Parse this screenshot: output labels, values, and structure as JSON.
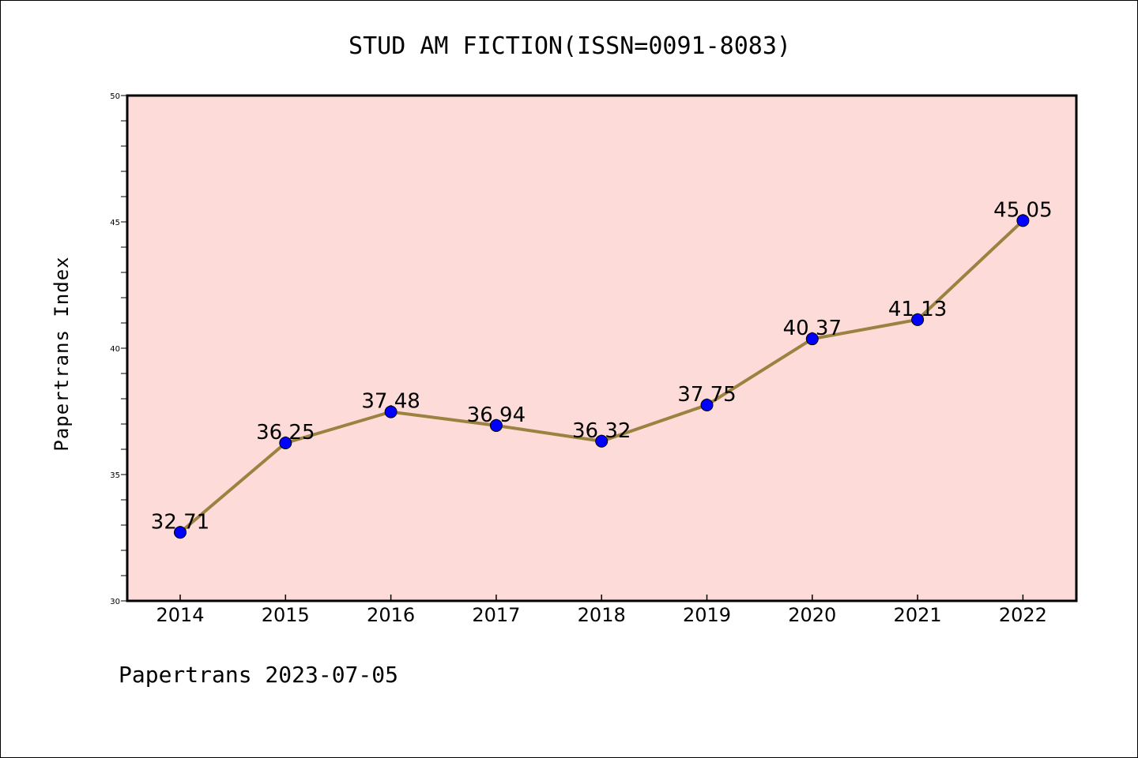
{
  "title": "STUD AM FICTION(ISSN=0091-8083)",
  "footer": "Papertrans 2023-07-05",
  "colors": {
    "plot_background": "#fddbd8",
    "line": "#9b8240",
    "marker": "#0000ff"
  },
  "chart_data": {
    "type": "line",
    "title": "STUD AM FICTION(ISSN=0091-8083)",
    "xlabel": "",
    "ylabel": "Papertrans Index",
    "categories": [
      "2014",
      "2015",
      "2016",
      "2017",
      "2018",
      "2019",
      "2020",
      "2021",
      "2022"
    ],
    "values": [
      32.71,
      36.25,
      37.48,
      36.94,
      36.32,
      37.75,
      40.37,
      41.13,
      45.05
    ],
    "data_labels": [
      "32.71",
      "36.25",
      "37.48",
      "36.94",
      "36.32",
      "37.75",
      "40.37",
      "41.13",
      "45.05"
    ],
    "ylim": [
      30,
      50
    ],
    "yticks": [
      "30",
      "35",
      "40",
      "45",
      "50"
    ],
    "grid": false,
    "legend": "none"
  }
}
